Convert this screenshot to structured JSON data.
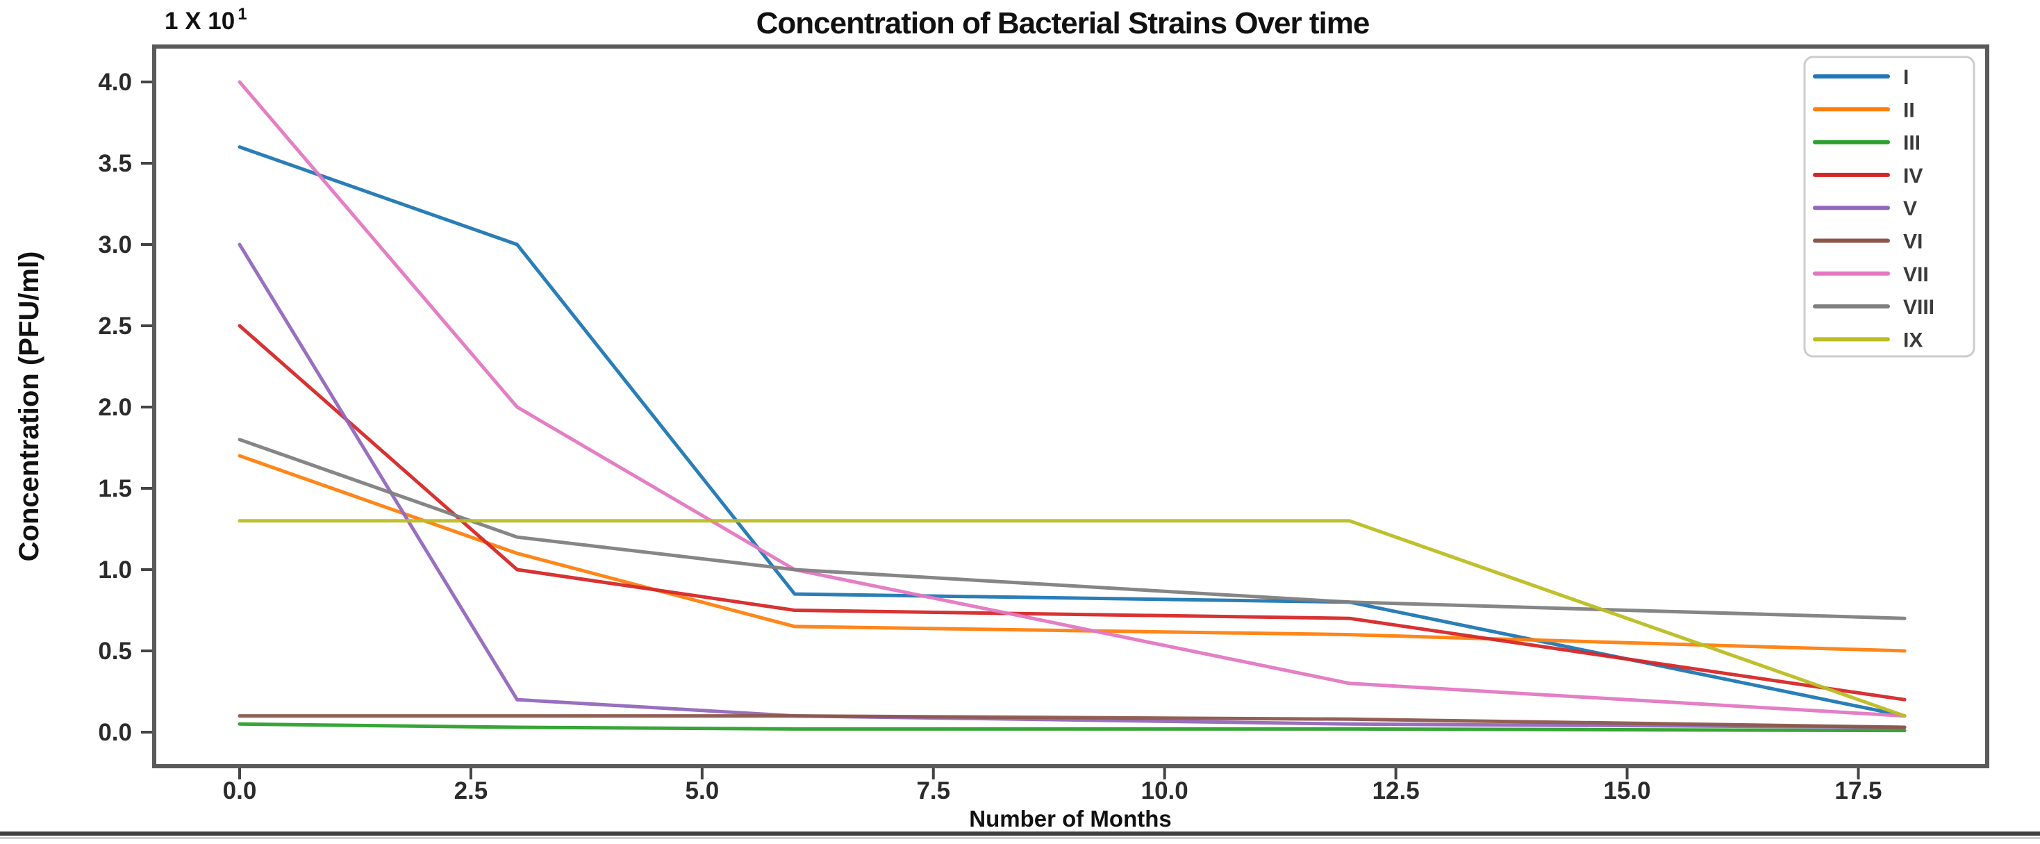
{
  "chart_data": {
    "type": "line",
    "title": "Concentration of Bacterial Strains Over time",
    "xlabel": "Number of Months",
    "ylabel": "Concentration (PFU/ml)",
    "offset_text": "1 X 10",
    "offset_exponent": "1",
    "x": [
      0,
      3,
      6,
      12,
      18
    ],
    "xticks": [
      "0.0",
      "2.5",
      "5.0",
      "7.5",
      "10.0",
      "12.5",
      "15.0",
      "17.5"
    ],
    "yticks": [
      "0.0",
      "0.5",
      "1.0",
      "1.5",
      "2.0",
      "2.5",
      "3.0",
      "3.5",
      "4.0"
    ],
    "xlim": [
      -0.9,
      18.9
    ],
    "ylim": [
      -0.21,
      4.22
    ],
    "grid": false,
    "legend_position": "upper right",
    "series": [
      {
        "name": "I",
        "color": "#1f77b4",
        "values": [
          3.6,
          3.0,
          0.85,
          0.8,
          0.1
        ]
      },
      {
        "name": "II",
        "color": "#ff7f0e",
        "values": [
          1.7,
          1.1,
          0.65,
          0.6,
          0.5
        ]
      },
      {
        "name": "III",
        "color": "#2ca02c",
        "values": [
          0.05,
          0.03,
          0.02,
          0.02,
          0.01
        ]
      },
      {
        "name": "IV",
        "color": "#d62728",
        "values": [
          2.5,
          1.0,
          0.75,
          0.7,
          0.2
        ]
      },
      {
        "name": "V",
        "color": "#9467bd",
        "values": [
          3.0,
          0.2,
          0.1,
          0.05,
          0.03
        ]
      },
      {
        "name": "VI",
        "color": "#8c564b",
        "values": [
          0.1,
          0.1,
          0.1,
          0.08,
          0.03
        ]
      },
      {
        "name": "VII",
        "color": "#e377c2",
        "values": [
          4.0,
          2.0,
          1.0,
          0.3,
          0.1
        ]
      },
      {
        "name": "VIII",
        "color": "#7f7f7f",
        "values": [
          1.8,
          1.2,
          1.0,
          0.8,
          0.7
        ]
      },
      {
        "name": "IX",
        "color": "#bcbd22",
        "values": [
          1.3,
          1.3,
          1.3,
          1.3,
          0.1
        ]
      }
    ]
  }
}
